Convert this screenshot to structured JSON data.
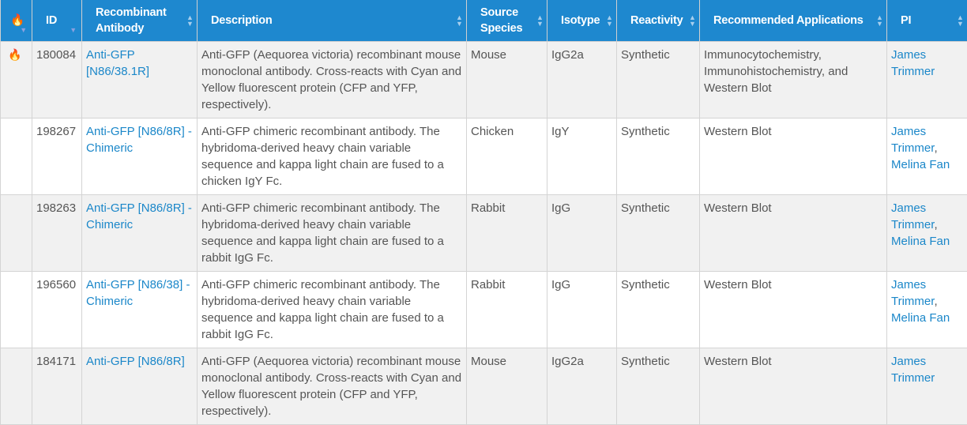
{
  "header": {
    "flame_icon": "fire-icon",
    "id": "ID",
    "antibody": "Recombinant Antibody",
    "description": "Description",
    "species": "Source Species",
    "isotype": "Isotype",
    "reactivity": "Reactivity",
    "applications": "Recommended Applications",
    "pi": "PI"
  },
  "colors": {
    "header_bg": "#1e88cf",
    "link": "#1b87c9",
    "flame": "#f0a02a"
  },
  "rows": [
    {
      "hot": true,
      "id": "180084",
      "antibody": "Anti-GFP [N86/38.1R]",
      "description": "Anti-GFP (Aequorea victoria) recombinant mouse monoclonal antibody. Cross-reacts with Cyan and Yellow fluorescent protein (CFP and YFP, respectively).",
      "species": "Mouse",
      "isotype": "IgG2a",
      "reactivity": "Synthetic",
      "applications": "Immunocytochemistry, Immunohistochemistry, and Western Blot",
      "pi": [
        "James Trimmer"
      ]
    },
    {
      "hot": false,
      "id": "198267",
      "antibody": "Anti-GFP [N86/8R] - Chimeric",
      "description": "Anti-GFP chimeric recombinant antibody. The hybridoma-derived heavy chain variable sequence and kappa light chain are fused to a chicken IgY Fc.",
      "species": "Chicken",
      "isotype": "IgY",
      "reactivity": "Synthetic",
      "applications": "Western Blot",
      "pi": [
        "James Trimmer",
        "Melina Fan"
      ]
    },
    {
      "hot": false,
      "id": "198263",
      "antibody": "Anti-GFP [N86/8R] - Chimeric",
      "description": "Anti-GFP chimeric recombinant antibody. The hybridoma-derived heavy chain variable sequence and kappa light chain are fused to a rabbit IgG Fc.",
      "species": "Rabbit",
      "isotype": "IgG",
      "reactivity": "Synthetic",
      "applications": "Western Blot",
      "pi": [
        "James Trimmer",
        "Melina Fan"
      ]
    },
    {
      "hot": false,
      "id": "196560",
      "antibody": "Anti-GFP [N86/38] - Chimeric",
      "description": "Anti-GFP chimeric recombinant antibody. The hybridoma-derived heavy chain variable sequence and kappa light chain are fused to a rabbit IgG Fc.",
      "species": "Rabbit",
      "isotype": "IgG",
      "reactivity": "Synthetic",
      "applications": "Western Blot",
      "pi": [
        "James Trimmer",
        "Melina Fan"
      ]
    },
    {
      "hot": false,
      "id": "184171",
      "antibody": "Anti-GFP [N86/8R]",
      "description": "Anti-GFP (Aequorea victoria) recombinant mouse monoclonal antibody. Cross-reacts with Cyan and Yellow fluorescent protein (CFP and YFP, respectively).",
      "species": "Mouse",
      "isotype": "IgG2a",
      "reactivity": "Synthetic",
      "applications": "Western Blot",
      "pi": [
        "James Trimmer"
      ]
    }
  ]
}
